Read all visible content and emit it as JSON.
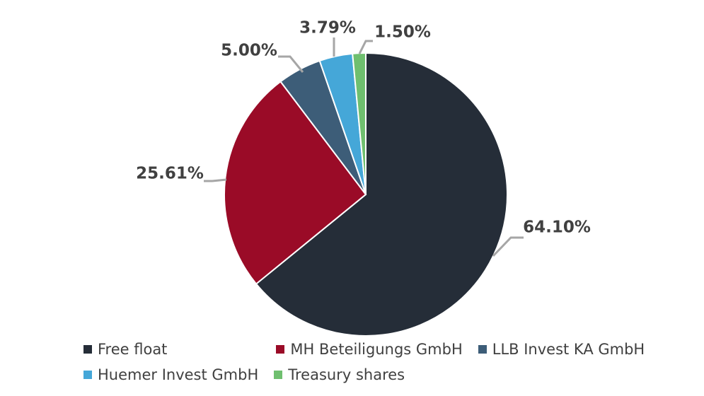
{
  "chart_data": {
    "type": "pie",
    "title": "",
    "slices": [
      {
        "label": "Free float",
        "value": 64.1,
        "display": "64.10%",
        "color": "#252d38"
      },
      {
        "label": "MH Beteiligungs GmbH",
        "value": 25.61,
        "display": "25.61%",
        "color": "#9a0b27"
      },
      {
        "label": "LLB Invest KA GmbH",
        "value": 5.0,
        "display": "5.00%",
        "color": "#3d5d78"
      },
      {
        "label": "Huemer Invest GmbH",
        "value": 3.79,
        "display": "3.79%",
        "color": "#45a7d8"
      },
      {
        "label": "Treasury shares",
        "value": 1.5,
        "display": "1.50%",
        "color": "#6fbf6f"
      }
    ],
    "start_angle_deg": 0,
    "direction": "clockwise",
    "legend_position": "bottom",
    "leader_line_color": "#a6a6a6"
  }
}
